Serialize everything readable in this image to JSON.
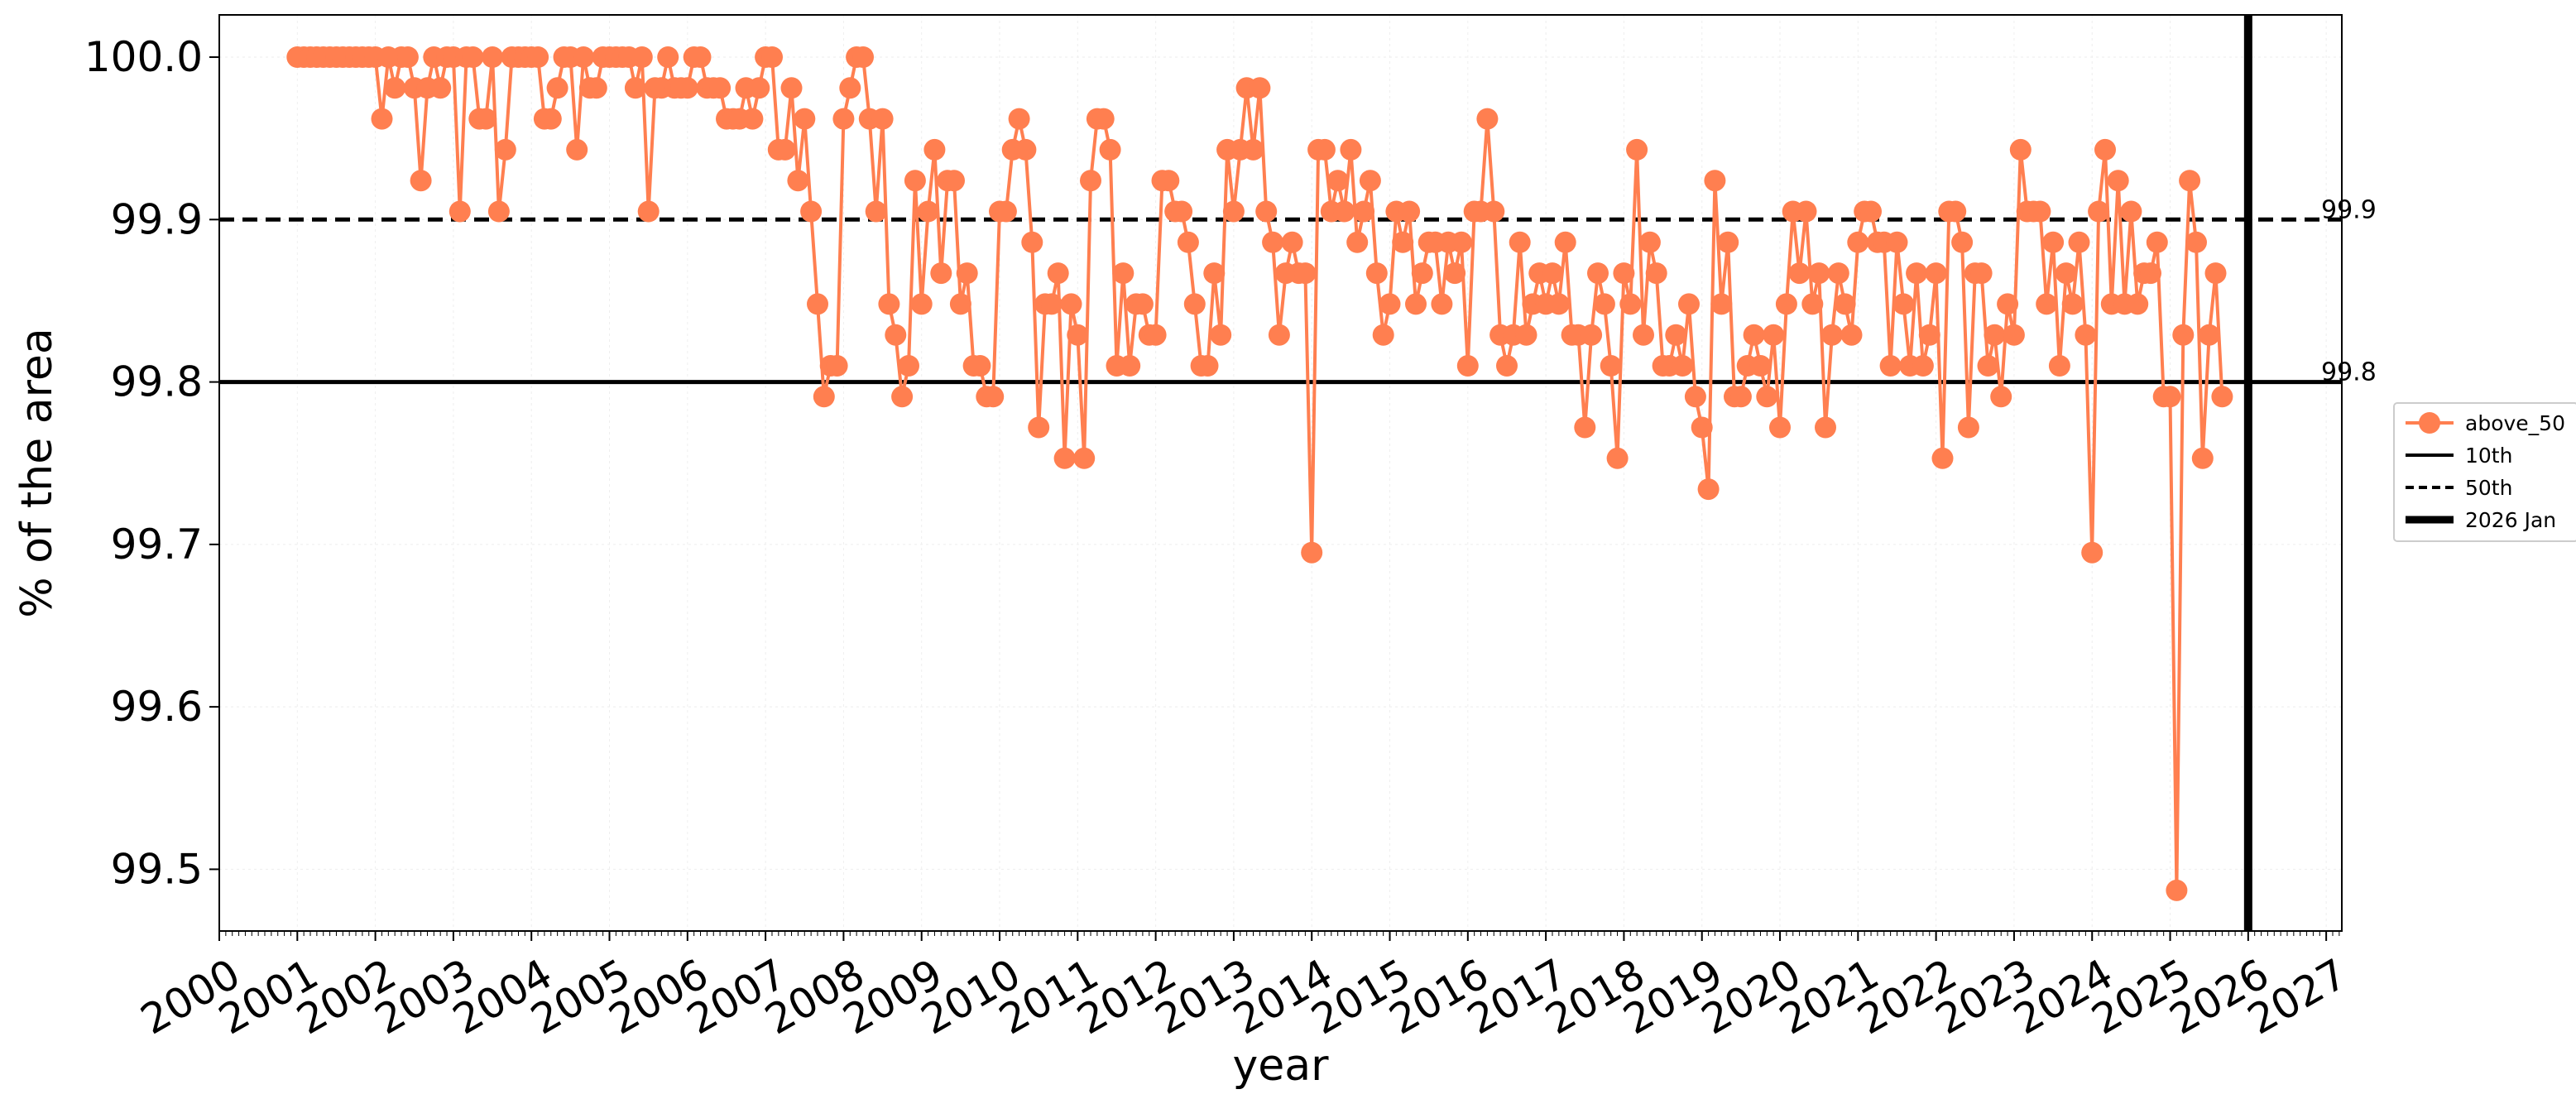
{
  "chart_data": {
    "type": "line",
    "title": "",
    "xlabel": "year",
    "ylabel": "% of the area",
    "xlim": [
      2000,
      2027.2
    ],
    "ylim": [
      99.462,
      100.026
    ],
    "x_ticks": [
      "2000",
      "2001",
      "2002",
      "2003",
      "2004",
      "2005",
      "2006",
      "2007",
      "2008",
      "2009",
      "2010",
      "2011",
      "2012",
      "2013",
      "2014",
      "2015",
      "2016",
      "2017",
      "2018",
      "2019",
      "2020",
      "2021",
      "2022",
      "2023",
      "2024",
      "2025",
      "2026",
      "2027"
    ],
    "y_ticks": [
      "99.5",
      "99.6",
      "99.7",
      "99.8",
      "99.9",
      "100.0"
    ],
    "grid": true,
    "legend_position": "right, outside plot",
    "colors": {
      "series": "#ff7f50",
      "reference": "#000000"
    },
    "series": [
      {
        "name": "above_50",
        "marker": "circle",
        "x_start": 2001.0,
        "x_step_months": 1,
        "values": [
          100.0,
          100.0,
          100.0,
          100.0,
          100.0,
          100.0,
          100.0,
          100.0,
          100.0,
          100.0,
          100.0,
          100.0,
          100.0,
          99.962,
          100.0,
          99.981,
          100.0,
          100.0,
          99.981,
          99.924,
          99.981,
          100.0,
          99.981,
          100.0,
          100.0,
          99.905,
          100.0,
          100.0,
          99.962,
          99.962,
          100.0,
          99.905,
          99.943,
          100.0,
          100.0,
          100.0,
          100.0,
          100.0,
          99.962,
          99.962,
          99.981,
          100.0,
          100.0,
          99.943,
          100.0,
          99.981,
          99.981,
          100.0,
          100.0,
          100.0,
          100.0,
          100.0,
          99.981,
          100.0,
          99.905,
          99.981,
          99.981,
          100.0,
          99.981,
          99.981,
          99.981,
          100.0,
          100.0,
          99.981,
          99.981,
          99.981,
          99.962,
          99.962,
          99.962,
          99.981,
          99.962,
          99.981,
          100.0,
          100.0,
          99.943,
          99.943,
          99.981,
          99.924,
          99.962,
          99.905,
          99.848,
          99.791,
          99.81,
          99.81,
          99.962,
          99.981,
          100.0,
          100.0,
          99.962,
          99.905,
          99.962,
          99.848,
          99.829,
          99.791,
          99.81,
          99.924,
          99.848,
          99.905,
          99.943,
          99.867,
          99.924,
          99.924,
          99.848,
          99.867,
          99.81,
          99.81,
          99.791,
          99.791,
          99.905,
          99.905,
          99.943,
          99.962,
          99.943,
          99.886,
          99.772,
          99.848,
          99.848,
          99.867,
          99.753,
          99.848,
          99.829,
          99.753,
          99.924,
          99.962,
          99.962,
          99.943,
          99.81,
          99.867,
          99.81,
          99.848,
          99.848,
          99.829,
          99.829,
          99.924,
          99.924,
          99.905,
          99.905,
          99.886,
          99.848,
          99.81,
          99.81,
          99.867,
          99.829,
          99.943,
          99.905,
          99.943,
          99.981,
          99.943,
          99.981,
          99.905,
          99.886,
          99.829,
          99.867,
          99.886,
          99.867,
          99.867,
          99.695,
          99.943,
          99.943,
          99.905,
          99.924,
          99.905,
          99.943,
          99.886,
          99.905,
          99.924,
          99.867,
          99.829,
          99.848,
          99.905,
          99.886,
          99.905,
          99.848,
          99.867,
          99.886,
          99.886,
          99.848,
          99.886,
          99.867,
          99.886,
          99.81,
          99.905,
          99.905,
          99.962,
          99.905,
          99.829,
          99.81,
          99.829,
          99.886,
          99.829,
          99.848,
          99.867,
          99.848,
          99.867,
          99.848,
          99.886,
          99.829,
          99.829,
          99.772,
          99.829,
          99.867,
          99.848,
          99.81,
          99.753,
          99.867,
          99.848,
          99.943,
          99.829,
          99.886,
          99.867,
          99.81,
          99.81,
          99.829,
          99.81,
          99.848,
          99.791,
          99.772,
          99.734,
          99.924,
          99.848,
          99.886,
          99.791,
          99.791,
          99.81,
          99.829,
          99.81,
          99.791,
          99.829,
          99.772,
          99.848,
          99.905,
          99.867,
          99.905,
          99.848,
          99.867,
          99.772,
          99.829,
          99.867,
          99.848,
          99.829,
          99.886,
          99.905,
          99.905,
          99.886,
          99.886,
          99.81,
          99.886,
          99.848,
          99.81,
          99.867,
          99.81,
          99.829,
          99.867,
          99.753,
          99.905,
          99.905,
          99.886,
          99.772,
          99.867,
          99.867,
          99.81,
          99.829,
          99.791,
          99.848,
          99.829,
          99.943,
          99.905,
          99.905,
          99.905,
          99.848,
          99.886,
          99.81,
          99.867,
          99.848,
          99.886,
          99.829,
          99.695,
          99.905,
          99.943,
          99.848,
          99.924,
          99.848,
          99.905,
          99.848,
          99.867,
          99.867,
          99.886,
          99.791,
          99.791,
          99.487,
          99.829,
          99.924,
          99.886,
          99.753,
          99.829,
          99.867,
          99.791
        ]
      }
    ],
    "reference_lines": [
      {
        "name": "10th",
        "value": 99.8,
        "style": "solid",
        "label": "99.8"
      },
      {
        "name": "50th",
        "value": 99.9,
        "style": "dashed",
        "label": "99.9"
      }
    ],
    "marker_line": {
      "name": "2026 Jan",
      "x": 2026.0
    }
  }
}
